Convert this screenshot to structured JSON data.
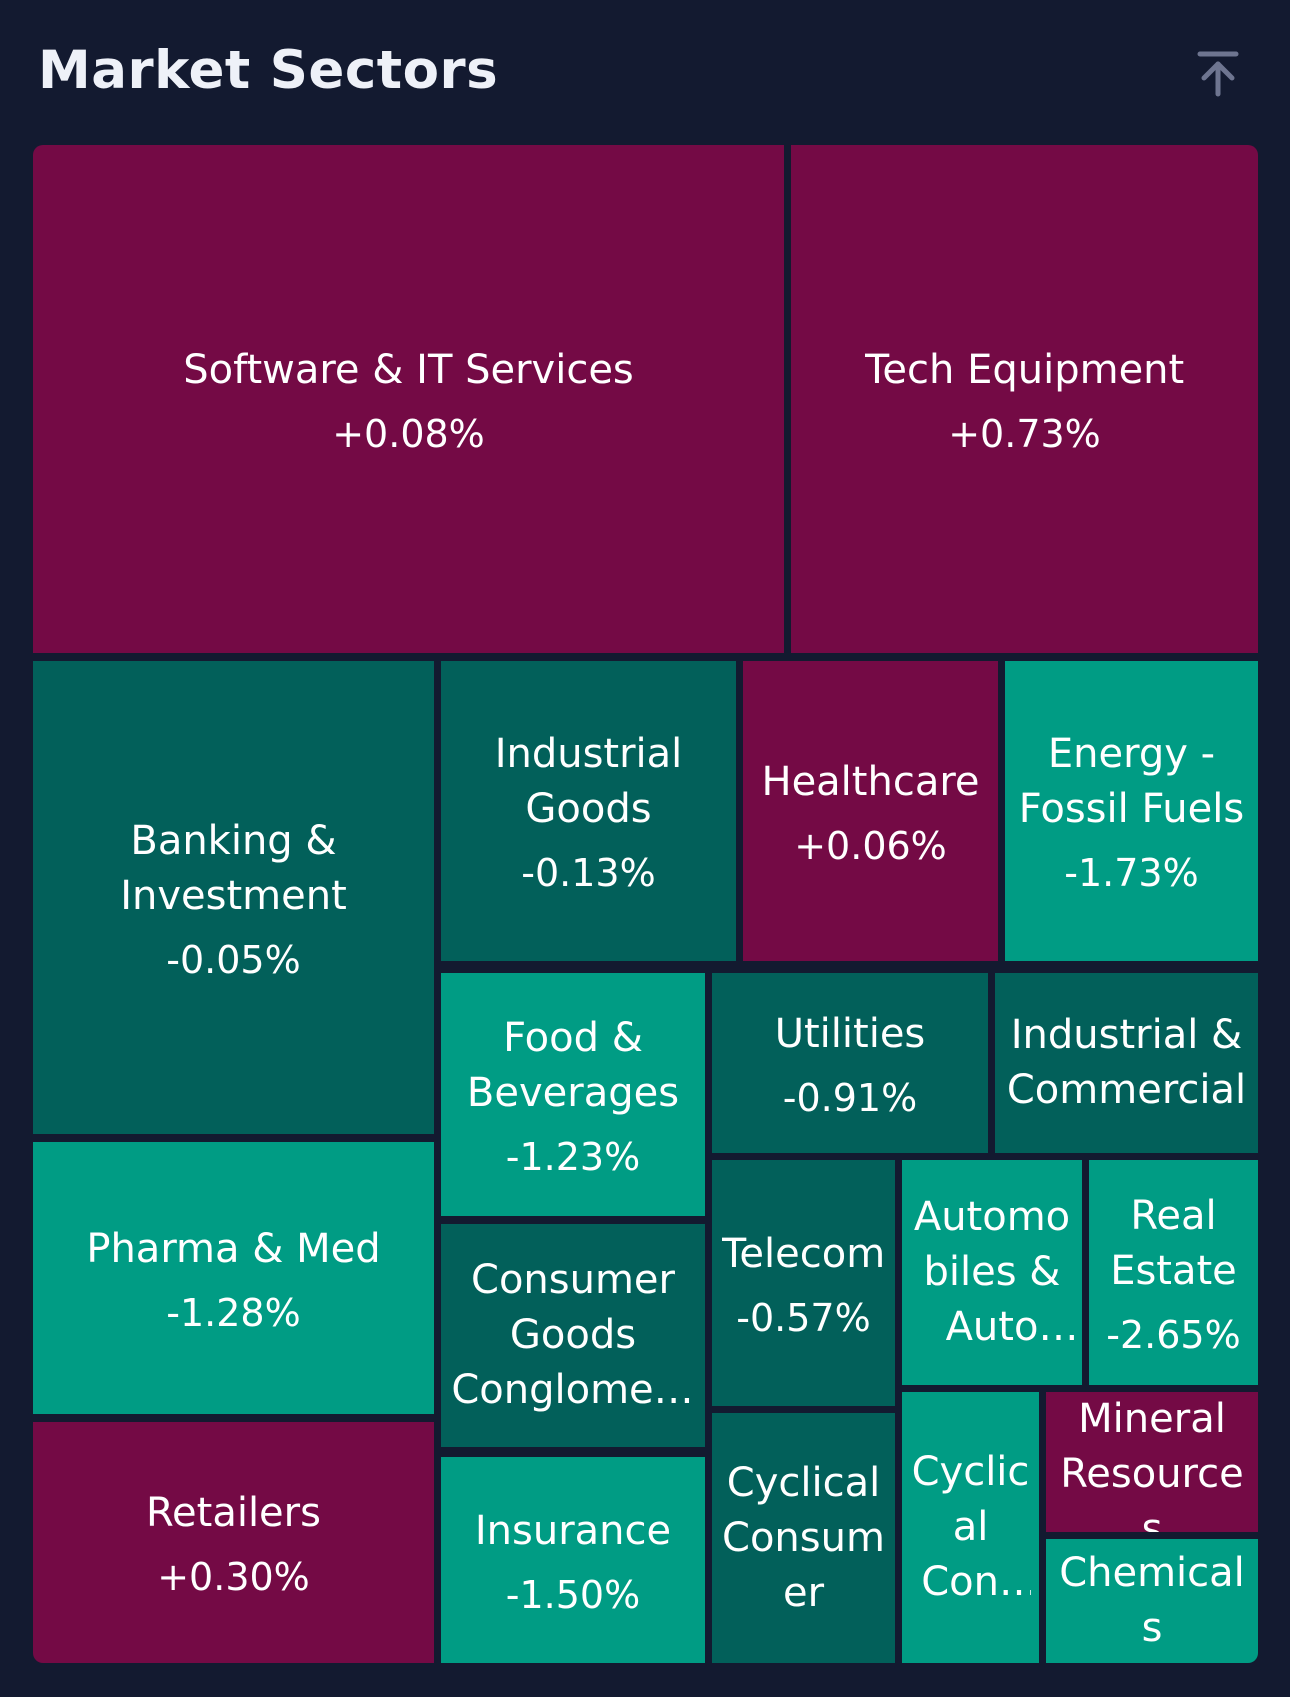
{
  "header": {
    "title": "Market Sectors"
  },
  "colors": {
    "background": "#131a30",
    "positive": "#740a45",
    "negative_small": "#02605a",
    "negative_large": "#009c84"
  },
  "sectors": [
    {
      "name": "Software & IT Services",
      "change": "+0.08%"
    },
    {
      "name": "Tech Equipment",
      "change": "+0.73%"
    },
    {
      "name": "Banking & Investment",
      "change": "-0.05%"
    },
    {
      "name": "Industrial Goods",
      "change": "-0.13%"
    },
    {
      "name": "Healthcare",
      "change": "+0.06%"
    },
    {
      "name": "Energy - Fossil Fuels",
      "change": "-1.73%"
    },
    {
      "name": "Food & Beverages",
      "change": "-1.23%"
    },
    {
      "name": "Utilities",
      "change": "-0.91%"
    },
    {
      "name": "Industrial & Commercial",
      "change": ""
    },
    {
      "name": "Pharma & Med",
      "change": "-1.28%"
    },
    {
      "name": "Consumer Goods Conglomerates",
      "change": ""
    },
    {
      "name": "Telecom",
      "change": "-0.57%"
    },
    {
      "name": "Automobiles & Auto Parts",
      "change": ""
    },
    {
      "name": "Real Estate",
      "change": "-2.65%"
    },
    {
      "name": "Retailers",
      "change": "+0.30%"
    },
    {
      "name": "Insurance",
      "change": "-1.50%"
    },
    {
      "name": "Cyclical Consumer",
      "change": ""
    },
    {
      "name": "Cyclical Consumer",
      "change": ""
    },
    {
      "name": "Mineral Resources",
      "change": ""
    },
    {
      "name": "Chemicals",
      "change": ""
    }
  ]
}
